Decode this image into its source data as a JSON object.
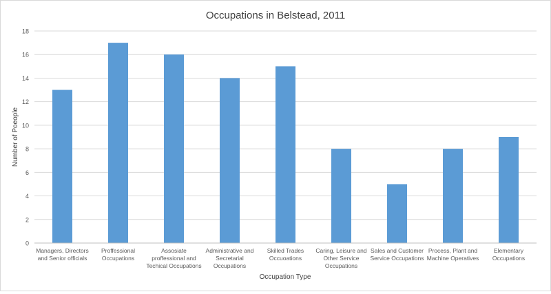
{
  "chart_data": {
    "type": "bar",
    "title": "Occupations in Belstead, 2011",
    "xlabel": "Occupation Type",
    "ylabel": "Number of Poeople",
    "ylim": [
      0,
      18
    ],
    "yticks": [
      0,
      2,
      4,
      6,
      8,
      10,
      12,
      14,
      16,
      18
    ],
    "grid": true,
    "legend": "none",
    "bar_color": "#5b9bd5",
    "categories": [
      [
        "Managers, Directors",
        "and Senior officials"
      ],
      [
        "Proffessional",
        "Occupations"
      ],
      [
        "Assosiate",
        "proffessional and",
        "Techical Occupations"
      ],
      [
        "Administrative and",
        "Secretarial",
        "Occupations"
      ],
      [
        "Skilled Trades",
        "Occuoations"
      ],
      [
        "Caring, Leisure and",
        "Other Service",
        "Occupations"
      ],
      [
        "Sales and Customer",
        "Service Occupations"
      ],
      [
        "Process, Plant and",
        "Machine Operatives"
      ],
      [
        "Elementary",
        "Occupations"
      ]
    ],
    "values": [
      13,
      17,
      16,
      14,
      15,
      8,
      5,
      8,
      9
    ]
  }
}
